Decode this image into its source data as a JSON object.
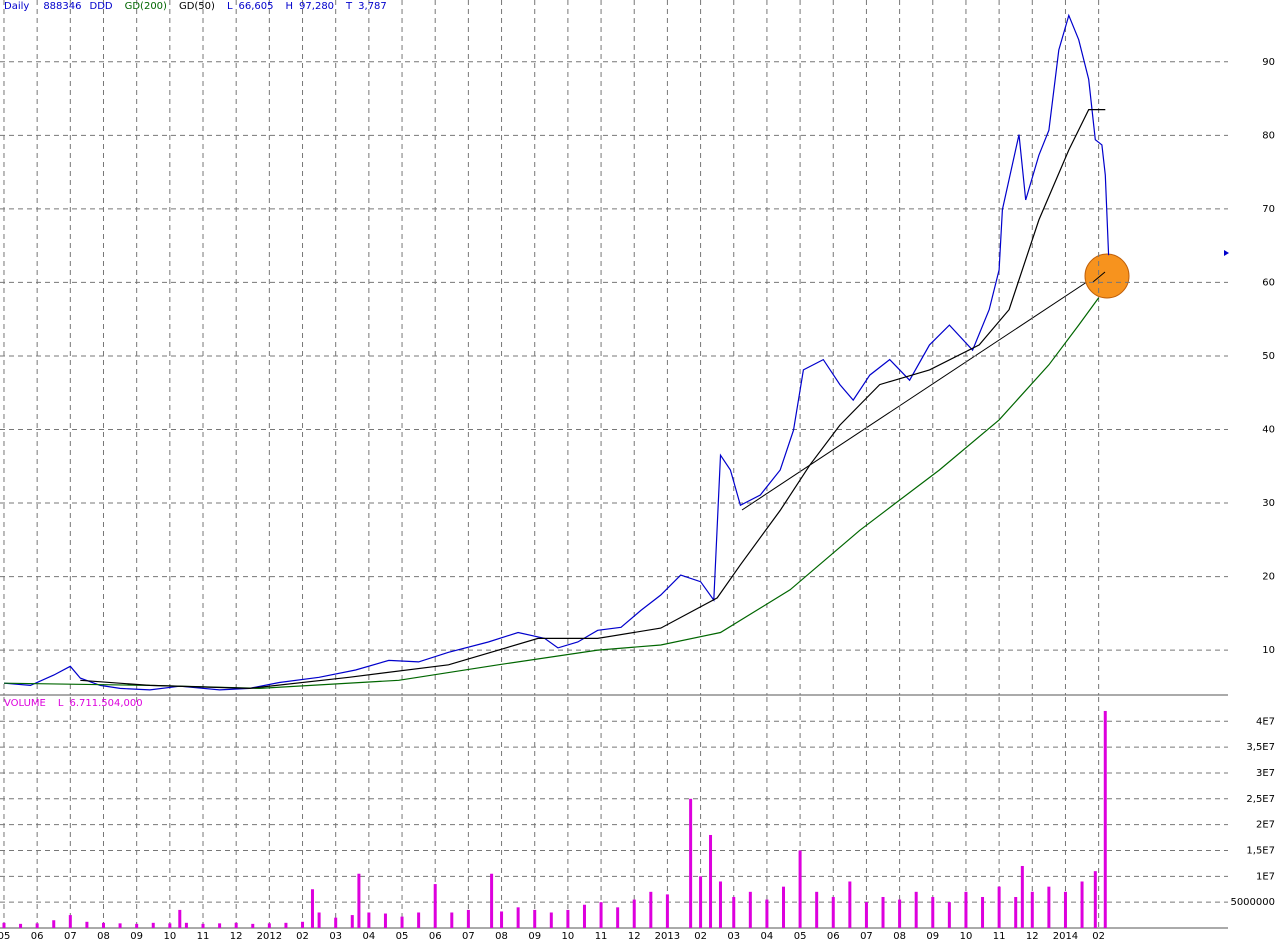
{
  "chart_data": [
    {
      "type": "line",
      "title": "Daily",
      "code": "888346",
      "stats": [
        {
          "label": "L",
          "value": "66,605"
        },
        {
          "label": "H",
          "value": "97,280"
        },
        {
          "label": "T",
          "value": "3,787"
        }
      ],
      "series": [
        {
          "name": "DDD",
          "color": "#0000cc",
          "x": [
            0,
            0.8,
            1.5,
            2.0,
            2.3,
            2.9,
            3.5,
            4.4,
            5.3,
            6.5,
            7.4,
            8.3,
            9.5,
            10.6,
            11.6,
            12.5,
            13.4,
            14.6,
            15.5,
            16.3,
            16.7,
            17.3,
            17.9,
            18.6,
            19.2,
            19.8,
            20.4,
            21.0,
            21.4,
            21.6,
            21.9,
            22.2,
            22.8,
            23.4,
            23.8,
            24.1,
            24.7,
            25.2,
            25.6,
            26.1,
            26.7,
            27.3,
            27.9,
            28.5,
            29.2,
            29.7,
            30.0,
            30.1,
            30.6,
            30.8,
            31.2,
            31.5,
            31.8,
            32.1,
            32.4,
            32.7,
            32.9,
            33.1,
            33.2,
            33.3
          ],
          "values": [
            5.5,
            5.2,
            6.6,
            7.8,
            6.2,
            5.2,
            4.8,
            4.6,
            5.1,
            4.6,
            4.8,
            5.6,
            6.3,
            7.3,
            8.6,
            8.4,
            9.7,
            11.1,
            12.4,
            11.6,
            10.3,
            11.1,
            12.7,
            13.1,
            15.4,
            17.5,
            20.2,
            19.3,
            16.8,
            36.5,
            34.5,
            29.7,
            31.1,
            34.5,
            39.9,
            48.1,
            49.5,
            46.1,
            44.0,
            47.4,
            49.5,
            46.7,
            51.5,
            54.2,
            50.8,
            56.3,
            61.7,
            69.9,
            80.1,
            71.2,
            77.3,
            80.7,
            91.6,
            96.3,
            93.0,
            87.6,
            79.4,
            78.7,
            74.6,
            63.7
          ]
        },
        {
          "name": "GD(200)",
          "color": "#006600",
          "x": [
            0,
            4.4,
            7.7,
            11.9,
            14.9,
            17.9,
            19.8,
            21.6,
            23.7,
            25.8,
            28.2,
            30.0,
            31.5,
            32.4,
            33.0
          ],
          "values": [
            5.5,
            5.2,
            4.8,
            5.9,
            8.0,
            10.0,
            10.7,
            12.4,
            18.2,
            26.3,
            34.5,
            41.3,
            48.8,
            54.2,
            57.9
          ]
        },
        {
          "name": "GD(50)",
          "color": "#000000",
          "x": [
            2.3,
            4.4,
            7.4,
            10.4,
            13.4,
            16.1,
            17.9,
            19.8,
            21.5,
            22.2,
            23.4,
            24.3,
            25.2,
            26.4,
            27.9,
            29.4,
            30.3,
            31.2,
            32.1,
            32.7,
            33.2
          ],
          "values": [
            5.9,
            5.2,
            4.8,
            6.3,
            8.0,
            11.6,
            11.6,
            13.0,
            17.1,
            21.6,
            29.0,
            35.2,
            40.6,
            46.1,
            48.1,
            51.5,
            56.3,
            68.5,
            78.0,
            83.5,
            83.5
          ]
        }
      ],
      "xlim": [
        -0.12,
        36.9
      ],
      "ylim": [
        3.9,
        98.4
      ],
      "yticks": [
        10,
        20,
        30,
        40,
        50,
        60,
        70,
        80,
        90
      ],
      "xticks": [
        {
          "value": 0,
          "label": "05"
        },
        {
          "value": 1,
          "label": "06"
        },
        {
          "value": 2,
          "label": "07"
        },
        {
          "value": 3,
          "label": "08"
        },
        {
          "value": 4,
          "label": "09"
        },
        {
          "value": 5,
          "label": "10"
        },
        {
          "value": 6,
          "label": "11"
        },
        {
          "value": 7,
          "label": "12"
        },
        {
          "value": 8,
          "label": "2012"
        },
        {
          "value": 9,
          "label": "02"
        },
        {
          "value": 10,
          "label": "03"
        },
        {
          "value": 11,
          "label": "04"
        },
        {
          "value": 12,
          "label": "05"
        },
        {
          "value": 13,
          "label": "06"
        },
        {
          "value": 14,
          "label": "07"
        },
        {
          "value": 15,
          "label": "08"
        },
        {
          "value": 16,
          "label": "09"
        },
        {
          "value": 17,
          "label": "10"
        },
        {
          "value": 18,
          "label": "11"
        },
        {
          "value": 19,
          "label": "12"
        },
        {
          "value": 20,
          "label": "2013"
        },
        {
          "value": 21,
          "label": "02"
        },
        {
          "value": 22,
          "label": "03"
        },
        {
          "value": 23,
          "label": "04"
        },
        {
          "value": 24,
          "label": "05"
        },
        {
          "value": 25,
          "label": "06"
        },
        {
          "value": 26,
          "label": "07"
        },
        {
          "value": 27,
          "label": "08"
        },
        {
          "value": 28,
          "label": "09"
        },
        {
          "value": 29,
          "label": "10"
        },
        {
          "value": 30,
          "label": "11"
        },
        {
          "value": 31,
          "label": "12"
        },
        {
          "value": 32,
          "label": "2014"
        },
        {
          "value": 33,
          "label": "02"
        }
      ],
      "grid": true
    },
    {
      "type": "bar",
      "title": "VOLUME",
      "stats": [
        {
          "label": "L",
          "value": "6.711.504,000"
        }
      ],
      "color": "#dd00dd",
      "x": [
        0,
        0.5,
        1,
        1.5,
        2,
        2.5,
        3,
        3.5,
        4,
        4.5,
        5,
        5.3,
        5.5,
        6,
        6.5,
        7,
        7.5,
        8,
        8.5,
        9,
        9.3,
        9.5,
        10,
        10.5,
        10.7,
        11,
        11.5,
        12,
        12.5,
        13,
        13.5,
        14,
        14.7,
        15,
        15.5,
        16,
        16.5,
        17,
        17.5,
        18,
        18.5,
        19,
        19.5,
        20,
        20.7,
        21,
        21.3,
        21.6,
        22,
        22.5,
        23,
        23.5,
        24,
        24.5,
        25,
        25.5,
        26,
        26.5,
        27,
        27.5,
        28,
        28.5,
        29,
        29.5,
        30,
        30.5,
        30.7,
        31,
        31.5,
        32,
        32.5,
        32.9,
        33.2
      ],
      "values": [
        1000000,
        800000,
        900000,
        1500000,
        2500000,
        1200000,
        1000000,
        900000,
        800000,
        1000000,
        900000,
        3500000,
        1000000,
        800000,
        900000,
        1000000,
        800000,
        900000,
        1000000,
        1200000,
        7500000,
        3000000,
        2000000,
        2500000,
        10500000,
        3000000,
        2800000,
        2200000,
        3000000,
        8500000,
        3000000,
        3500000,
        10500000,
        3200000,
        4000000,
        3500000,
        3000000,
        3500000,
        4500000,
        5000000,
        4000000,
        5500000,
        7000000,
        6500000,
        25000000,
        10000000,
        18000000,
        9000000,
        6000000,
        7000000,
        5500000,
        8000000,
        15000000,
        7000000,
        6000000,
        9000000,
        5000000,
        6000000,
        5500000,
        7000000,
        6000000,
        5000000,
        7000000,
        6000000,
        8000000,
        6000000,
        12000000,
        7000000,
        8000000,
        7000000,
        9000000,
        11000000,
        42000000
      ],
      "xlim": [
        -0.12,
        36.9
      ],
      "ylim": [
        0,
        44700000
      ],
      "yticks": [
        5000000,
        {
          "value": 10000000,
          "label": "1E7"
        },
        {
          "value": 15000000,
          "label": "1,5E7"
        },
        {
          "value": 20000000,
          "label": "2E7"
        },
        {
          "value": 25000000,
          "label": "2,5E7"
        },
        {
          "value": 30000000,
          "label": "3E7"
        },
        {
          "value": 35000000,
          "label": "3,5E7"
        },
        {
          "value": 40000000,
          "label": "4E7"
        }
      ],
      "grid": true
    }
  ]
}
